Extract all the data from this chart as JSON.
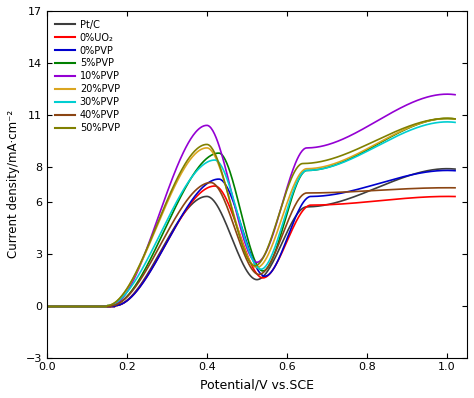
{
  "title": "",
  "xlabel": "Potential/V vs.SCE",
  "ylabel": "Current density/mA·cm⁻²",
  "xlim": [
    0.0,
    1.05
  ],
  "ylim": [
    -3,
    17
  ],
  "yticks": [
    -3,
    0,
    3,
    6,
    8,
    11,
    14,
    17
  ],
  "xticks": [
    0.0,
    0.2,
    0.4,
    0.6,
    0.8,
    1.0
  ],
  "legend_labels": [
    "Pt/C",
    "0%UO₂",
    "0%PVP",
    "5%PVP",
    "10%PVP",
    "20%PVP",
    "30%PVP",
    "40%PVP",
    "50%PVP"
  ],
  "colors": [
    "#3d3d3d",
    "#ff0000",
    "#0000cd",
    "#008000",
    "#9400d3",
    "#daa520",
    "#00ced1",
    "#8b4513",
    "#808000"
  ],
  "background_color": "#ffffff"
}
